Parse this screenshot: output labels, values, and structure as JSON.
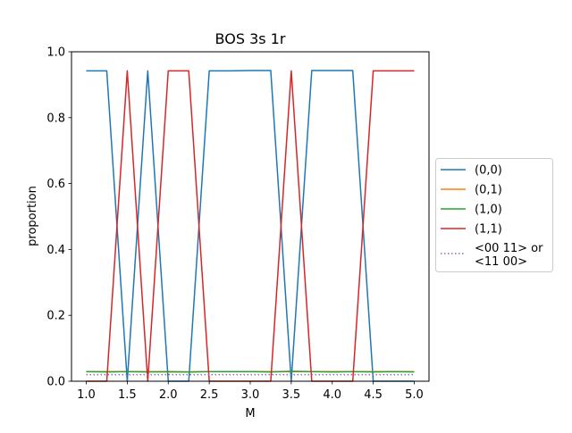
{
  "chart_data": {
    "type": "line",
    "title": "BOS 3s 1r",
    "xlabel": "M",
    "ylabel": "proportion",
    "xlim": [
      0.82,
      5.18
    ],
    "ylim": [
      0.0,
      1.0
    ],
    "xticks": [
      1.0,
      1.5,
      2.0,
      2.5,
      3.0,
      3.5,
      4.0,
      4.5,
      5.0
    ],
    "xtick_labels": [
      "1.0",
      "1.5",
      "2.0",
      "2.5",
      "3.0",
      "3.5",
      "4.0",
      "4.5",
      "5.0"
    ],
    "yticks": [
      0.0,
      0.2,
      0.4,
      0.6,
      0.8,
      1.0
    ],
    "ytick_labels": [
      "0.0",
      "0.2",
      "0.4",
      "0.6",
      "0.8",
      "1.0"
    ],
    "grid": false,
    "legend_position": "outside-right",
    "x": [
      1.0,
      1.25,
      1.5,
      1.75,
      2.0,
      2.25,
      2.5,
      2.75,
      3.0,
      3.25,
      3.5,
      3.75,
      4.0,
      4.25,
      4.5,
      4.75,
      5.0
    ],
    "series": [
      {
        "name": "(0,0)",
        "color": "#1f77b4",
        "style": "solid",
        "values": [
          0.942,
          0.942,
          0.0,
          0.942,
          0.0,
          0.0,
          0.942,
          0.942,
          0.943,
          0.943,
          0.0,
          0.943,
          0.943,
          0.943,
          0.0,
          0.0,
          0.0
        ]
      },
      {
        "name": "(0,1)",
        "color": "#ff7f0e",
        "style": "solid",
        "values": [
          0.029,
          0.029,
          0.029,
          0.029,
          0.028,
          0.028,
          0.029,
          0.029,
          0.029,
          0.029,
          0.029,
          0.029,
          0.029,
          0.029,
          0.029,
          0.029,
          0.029
        ]
      },
      {
        "name": "(1,0)",
        "color": "#2ca02c",
        "style": "solid",
        "values": [
          0.029,
          0.028,
          0.029,
          0.028,
          0.029,
          0.028,
          0.029,
          0.029,
          0.029,
          0.028,
          0.03,
          0.029,
          0.028,
          0.029,
          0.028,
          0.029,
          0.028
        ]
      },
      {
        "name": "(1,1)",
        "color": "#d62728",
        "style": "solid",
        "values": [
          0.0,
          0.0,
          0.942,
          0.0,
          0.942,
          0.942,
          0.0,
          0.0,
          0.0,
          0.0,
          0.942,
          0.0,
          0.0,
          0.0,
          0.942,
          0.942,
          0.942
        ]
      },
      {
        "name": "<00 11> or\n<11 00>",
        "name_lines": [
          "<00 11> or",
          "<11 00>"
        ],
        "color": "#9467bd",
        "style": "dotted",
        "values": [
          0.02,
          0.02,
          0.02,
          0.02,
          0.02,
          0.02,
          0.02,
          0.02,
          0.02,
          0.02,
          0.02,
          0.02,
          0.02,
          0.02,
          0.02,
          0.02,
          0.02
        ]
      }
    ]
  }
}
